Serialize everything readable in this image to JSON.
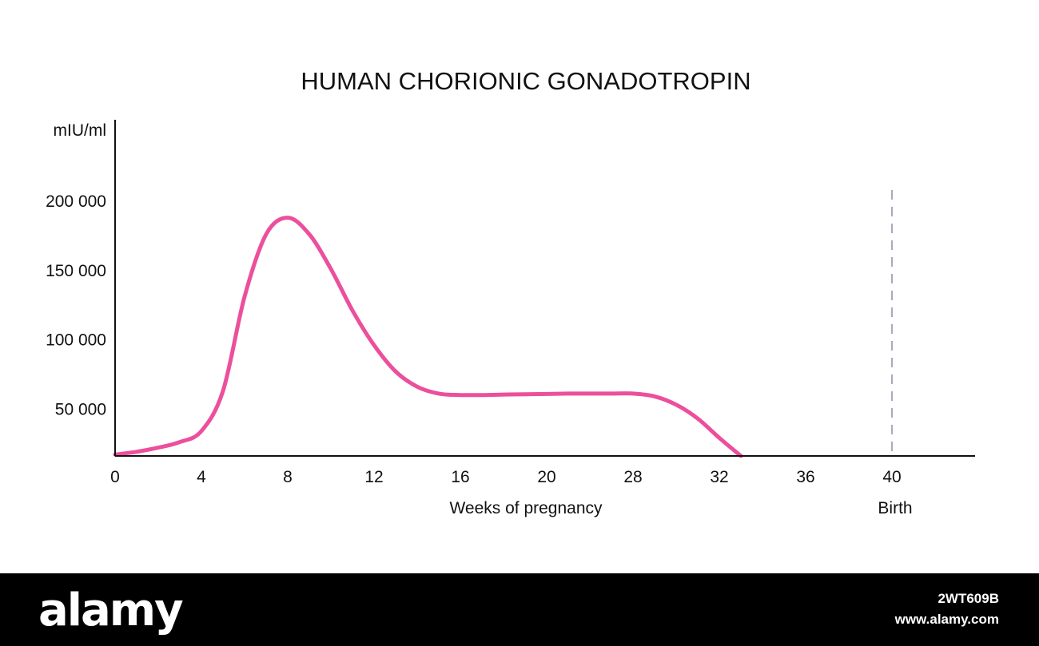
{
  "chart_data": {
    "type": "line",
    "title": "HUMAN CHORIONIC GONADOTROPIN",
    "ylabel": "mIU/ml",
    "xlabel": "Weeks of pregnancy",
    "x_tick_labels": [
      "0",
      "4",
      "8",
      "12",
      "16",
      "20",
      "28",
      "32",
      "36",
      "40"
    ],
    "y_ticks": [
      {
        "value": 50000,
        "label": "50 000"
      },
      {
        "value": 100000,
        "label": "100 000"
      },
      {
        "value": 150000,
        "label": "150 000"
      },
      {
        "value": 200000,
        "label": "200 000"
      }
    ],
    "ylim": [
      15000,
      215000
    ],
    "series": [
      {
        "color": "#ec4f9c",
        "points": [
          {
            "tick": 0,
            "y": 16000
          },
          {
            "tick": 1,
            "y": 18000
          },
          {
            "tick": 2,
            "y": 21000
          },
          {
            "tick": 3,
            "y": 25000
          },
          {
            "tick": 4,
            "y": 33000
          },
          {
            "tick": 5,
            "y": 62000
          },
          {
            "tick": 6,
            "y": 130000
          },
          {
            "tick": 7,
            "y": 175000
          },
          {
            "tick": 8,
            "y": 187000
          },
          {
            "tick": 9,
            "y": 175000
          },
          {
            "tick": 10,
            "y": 150000
          },
          {
            "tick": 11,
            "y": 120000
          },
          {
            "tick": 12,
            "y": 95000
          },
          {
            "tick": 13,
            "y": 76000
          },
          {
            "tick": 14,
            "y": 65000
          },
          {
            "tick": 15,
            "y": 60000
          },
          {
            "tick": 16,
            "y": 59000
          },
          {
            "tick": 17,
            "y": 59000
          },
          {
            "tick": 18,
            "y": 59300
          },
          {
            "tick": 19,
            "y": 59500
          },
          {
            "tick": 20,
            "y": 59700
          },
          {
            "tick": 21,
            "y": 60000
          },
          {
            "tick": 22,
            "y": 60000
          },
          {
            "tick": 23,
            "y": 60000
          },
          {
            "tick": 24,
            "y": 60000
          },
          {
            "tick": 25,
            "y": 58000
          },
          {
            "tick": 26,
            "y": 52000
          },
          {
            "tick": 27,
            "y": 42000
          },
          {
            "tick": 28,
            "y": 28000
          },
          {
            "tick": 29,
            "y": 15000
          }
        ]
      }
    ],
    "marker": {
      "tick": "40",
      "label": "Birth",
      "style": "dashed",
      "color": "#a9acbd"
    },
    "grid": false,
    "legend": "none"
  },
  "watermark": {
    "brand": "alamy",
    "image_id": "2WT609B",
    "site": "www.alamy.com"
  }
}
